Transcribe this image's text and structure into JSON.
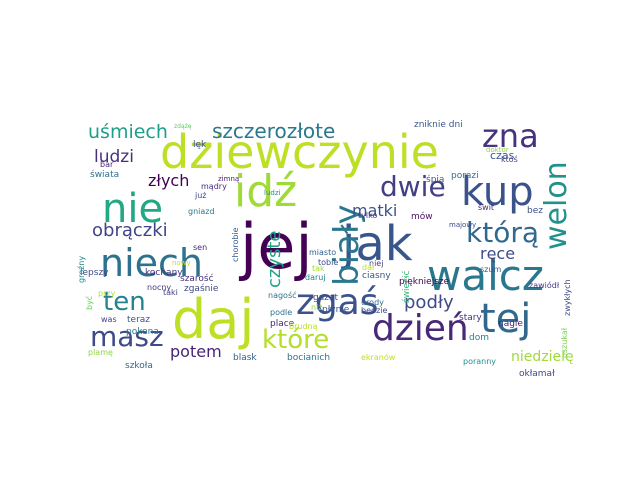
{
  "word_cloud": {
    "words": [
      {
        "text": "jej",
        "color": "#440154"
      },
      {
        "text": "daj",
        "color": "#bddf26"
      },
      {
        "text": "dziewczynie",
        "color": "#bddf26"
      },
      {
        "text": "jak",
        "color": "#39568c"
      },
      {
        "text": "walcz",
        "color": "#2a788e"
      },
      {
        "text": "zgaś",
        "color": "#3b528b"
      },
      {
        "text": "niech",
        "color": "#2c728e"
      },
      {
        "text": "nie",
        "color": "#22a884"
      },
      {
        "text": "idź",
        "color": "#a0da39"
      },
      {
        "text": "kup",
        "color": "#3b528b"
      },
      {
        "text": "tej",
        "color": "#31688e"
      },
      {
        "text": "dzień",
        "color": "#482878"
      },
      {
        "text": "welon",
        "color": "#21918c"
      },
      {
        "text": "biały",
        "color": "#2a788e"
      },
      {
        "text": "którą",
        "color": "#31688e"
      },
      {
        "text": "zna",
        "color": "#46327e"
      },
      {
        "text": "masz",
        "color": "#3e4a89"
      },
      {
        "text": "ten",
        "color": "#26828e"
      },
      {
        "text": "które",
        "color": "#b5de2b"
      },
      {
        "text": "dwie",
        "color": "#433e85"
      },
      {
        "text": "szczerozłote",
        "color": "#2a788e"
      },
      {
        "text": "uśmiech",
        "color": "#1f9e89"
      },
      {
        "text": "czyste",
        "color": "#20a486"
      },
      {
        "text": "obrączki",
        "color": "#414487"
      },
      {
        "text": "podły",
        "color": "#3e4a89"
      },
      {
        "text": "potem",
        "color": "#482475"
      },
      {
        "text": "matki",
        "color": "#3b528b"
      },
      {
        "text": "ludzi",
        "color": "#472f7d"
      },
      {
        "text": "złych",
        "color": "#440154"
      },
      {
        "text": "ręce",
        "color": "#3e4a89"
      },
      {
        "text": "niedzielę",
        "color": "#a0da39"
      },
      {
        "text": "czas",
        "color": "#39568c"
      },
      {
        "text": "świecić",
        "color": "#35b779"
      },
      {
        "text": "bocianich",
        "color": "#2c728e"
      },
      {
        "text": "piękniejsze",
        "color": "#440154"
      },
      {
        "text": "oszukał",
        "color": "#7ad151"
      },
      {
        "text": "okłamał",
        "color": "#3e4a89"
      },
      {
        "text": "poranny",
        "color": "#21918c"
      },
      {
        "text": "ekranów",
        "color": "#c2df23"
      },
      {
        "text": "blask",
        "color": "#34618d"
      },
      {
        "text": "szkoła",
        "color": "#31688e"
      },
      {
        "text": "plamę",
        "color": "#8fd744"
      },
      {
        "text": "place",
        "color": "#482475"
      },
      {
        "text": "podle",
        "color": "#2c728e"
      },
      {
        "text": "dom",
        "color": "#26828e"
      },
      {
        "text": "nagle",
        "color": "#481f70"
      },
      {
        "text": "zwykłych",
        "color": "#3e4a89"
      },
      {
        "text": "zawiódł",
        "color": "#443983"
      },
      {
        "text": "stary",
        "color": "#46327e"
      },
      {
        "text": "ciasny",
        "color": "#39568c"
      },
      {
        "text": "szum",
        "color": "#38588c"
      },
      {
        "text": "będzie",
        "color": "#3f4788"
      },
      {
        "text": "urody",
        "color": "#306a8e"
      },
      {
        "text": "niej",
        "color": "#414487"
      },
      {
        "text": "tylko",
        "color": "#443983"
      },
      {
        "text": "mów",
        "color": "#471063"
      },
      {
        "text": "świt",
        "color": "#482878"
      },
      {
        "text": "bez",
        "color": "#3b528b"
      },
      {
        "text": "kochany",
        "color": "#46327e"
      },
      {
        "text": "lepszy",
        "color": "#3e4a89"
      },
      {
        "text": "groźny",
        "color": "#238a8d"
      },
      {
        "text": "być",
        "color": "#6ccd5a"
      },
      {
        "text": "was",
        "color": "#433e85"
      },
      {
        "text": "teraz",
        "color": "#3b528b"
      },
      {
        "text": "pokona",
        "color": "#2a788e"
      },
      {
        "text": "przy",
        "color": "#b5de2b"
      },
      {
        "text": "bar",
        "color": "#482878"
      },
      {
        "text": "świata",
        "color": "#2d708e"
      },
      {
        "text": "nocny",
        "color": "#453781"
      },
      {
        "text": "taki",
        "color": "#414487"
      },
      {
        "text": "szarość",
        "color": "#46327e"
      },
      {
        "text": "zgaśnie",
        "color": "#3f4788"
      },
      {
        "text": "nagość",
        "color": "#2a768e"
      },
      {
        "text": "płynie",
        "color": "#3b528b"
      },
      {
        "text": "gazet",
        "color": "#3f4788"
      },
      {
        "text": "brudną",
        "color": "#b8de29"
      },
      {
        "text": "tobie",
        "color": "#3e4a89"
      },
      {
        "text": "dał",
        "color": "#c2df23"
      },
      {
        "text": "niż",
        "color": "#93d741"
      },
      {
        "text": "chorobie",
        "color": "#355f8d"
      },
      {
        "text": "daruj",
        "color": "#26828e"
      },
      {
        "text": "miasto",
        "color": "#35608d"
      },
      {
        "text": "tak",
        "color": "#a8db34"
      },
      {
        "text": "sen",
        "color": "#482475"
      },
      {
        "text": "nowy",
        "color": "#c5e021"
      },
      {
        "text": "gniazd",
        "color": "#2a788e"
      },
      {
        "text": "już",
        "color": "#3f4788"
      },
      {
        "text": "mądry",
        "color": "#472d7b"
      },
      {
        "text": "zimną",
        "color": "#481a6c"
      },
      {
        "text": "majowy",
        "color": "#3e4a89"
      },
      {
        "text": "śpią",
        "color": "#39568c"
      },
      {
        "text": "porazi",
        "color": "#2c728e"
      },
      {
        "text": "zniknie dni",
        "color": "#39568c"
      },
      {
        "text": "lęk",
        "color": "#3b528b"
      },
      {
        "text": "ktoś",
        "color": "#433e85"
      },
      {
        "text": "doktor",
        "color": "#8bd646"
      },
      {
        "text": "zdążę",
        "color": "#5ec962"
      },
      {
        "text": "ludzi",
        "color": "#21918c"
      }
    ]
  }
}
